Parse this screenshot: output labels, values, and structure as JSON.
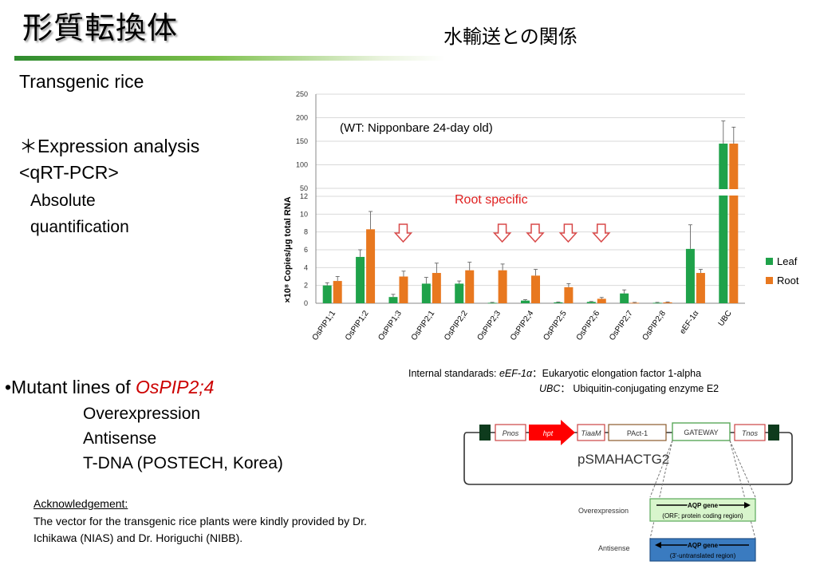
{
  "header": {
    "title": "形質転換体",
    "subtitle": "水輸送との関係"
  },
  "left": {
    "heading": "Transgenic rice",
    "analysis_line1": "＊Expression analysis",
    "analysis_line2": "<qRT-PCR>",
    "method_line1": "Absolute",
    "method_line2": "quantification",
    "mutant_prefix": "•Mutant lines of ",
    "mutant_gene": "OsPIP2;4",
    "lines": [
      "Overexpression",
      "Antisense",
      "T-DNA  (POSTECH, Korea)"
    ]
  },
  "ack": {
    "label": "Acknowledgement:",
    "text1": "The vector for the transgenic rice plants were kindly provided by Dr.",
    "text2": "Ichikawa (NIAS) and Dr. Horiguchi (NIBB)."
  },
  "standards": {
    "prefix": "Internal standarads: ",
    "g1": "eEF-1α",
    "d1": "：Eukaryotic elongation factor 1-alpha",
    "g2": "UBC",
    "d2": "： Ubiquitin-conjugating enzyme E2"
  },
  "chart_data": {
    "type": "bar",
    "title": "(WT: Nipponbare 24-day old)",
    "annotation": "Root specific",
    "ylabel": "×10⁸ Copies/μg total RNA",
    "ylim_lower": [
      0,
      12
    ],
    "ylim_upper": [
      50,
      250
    ],
    "yticks_lower": [
      "0",
      "2",
      "4",
      "6",
      "8",
      "10",
      "12"
    ],
    "yticks_upper": [
      "50",
      "100",
      "150",
      "200",
      "250"
    ],
    "categories": [
      "OsPIP1;1",
      "OsPIP1;2",
      "OsPIP1;3",
      "OsPIP2;1",
      "OsPIP2;2",
      "OsPIP2;3",
      "OsPIP2;4",
      "OsPIP2;5",
      "OsPIP2;6",
      "OsPIP2;7",
      "OsPIP2;8",
      "eEF-1α",
      "UBC"
    ],
    "series": [
      {
        "name": "Leaf",
        "color": "#1fa24a",
        "values": [
          2.0,
          5.2,
          0.7,
          2.2,
          2.2,
          0.05,
          0.3,
          0.1,
          0.15,
          1.1,
          0.05,
          6.1,
          145
        ],
        "errors": [
          0.3,
          0.8,
          0.3,
          0.7,
          0.3,
          0.05,
          0.1,
          0.05,
          0.05,
          0.4,
          0.05,
          2.7,
          48
        ]
      },
      {
        "name": "Root",
        "color": "#e8781f",
        "values": [
          2.5,
          8.3,
          3.0,
          3.4,
          3.7,
          3.7,
          3.1,
          1.8,
          0.5,
          0.05,
          0.1,
          3.4,
          145
        ],
        "errors": [
          0.5,
          2.0,
          0.6,
          1.1,
          0.9,
          0.7,
          0.7,
          0.4,
          0.15,
          0.05,
          0.05,
          0.4,
          35
        ]
      }
    ],
    "arrow_categories": [
      "OsPIP1;3",
      "OsPIP2;3",
      "OsPIP2;4",
      "OsPIP2;5",
      "OsPIP2;6"
    ],
    "legend_position": "right"
  },
  "vector": {
    "name": "pSMAHACTG2",
    "boxes": [
      "Pnos",
      "hpt",
      "TiaaM",
      "PAct-1",
      "GATEWAY",
      "Tnos"
    ],
    "over_label": "Overexpression",
    "anti_label": "Antisense",
    "over_box_title": "AQP gene",
    "over_box_sub": "(ORF; protein coding region)",
    "anti_box_title": "AQP gene",
    "anti_box_sub": "(3'-untranslated region)"
  }
}
